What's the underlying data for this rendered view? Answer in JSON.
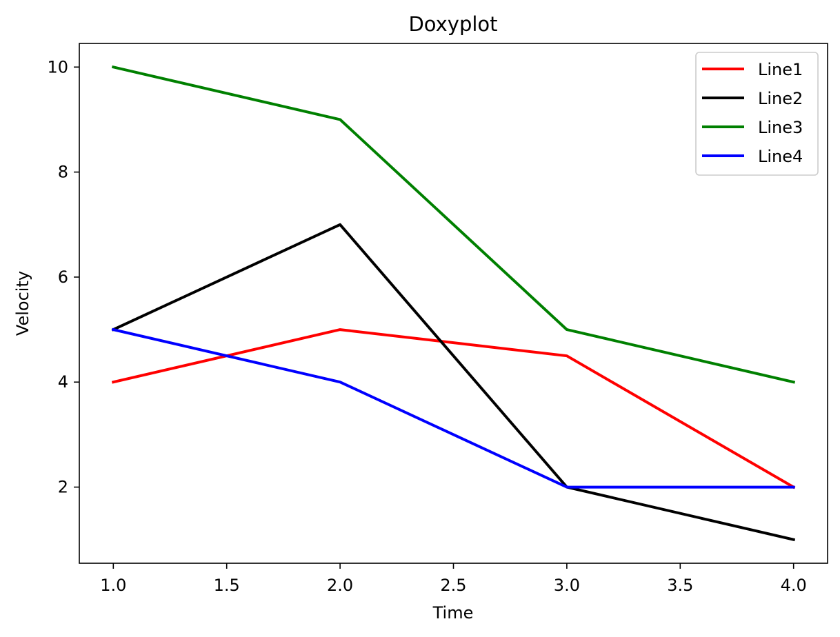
{
  "chart_data": {
    "type": "line",
    "title": "Doxyplot",
    "xlabel": "Time",
    "ylabel": "Velocity",
    "xlim": [
      0.85,
      4.15
    ],
    "ylim": [
      0.55,
      10.45
    ],
    "xticks": [
      1.0,
      1.5,
      2.0,
      2.5,
      3.0,
      3.5,
      4.0
    ],
    "xtick_labels": [
      "1.0",
      "1.5",
      "2.0",
      "2.5",
      "3.0",
      "3.5",
      "4.0"
    ],
    "yticks": [
      2,
      4,
      6,
      8,
      10
    ],
    "ytick_labels": [
      "2",
      "4",
      "6",
      "8",
      "10"
    ],
    "grid": false,
    "legend_position": "top-right",
    "x": [
      1,
      2,
      3,
      4
    ],
    "series": [
      {
        "name": "Line1",
        "color": "#ff0000",
        "values": [
          4,
          5,
          4.5,
          2
        ]
      },
      {
        "name": "Line2",
        "color": "#000000",
        "values": [
          5,
          7,
          2,
          1
        ]
      },
      {
        "name": "Line3",
        "color": "#008000",
        "values": [
          10,
          9,
          5,
          4
        ]
      },
      {
        "name": "Line4",
        "color": "#0000ff",
        "values": [
          5,
          4,
          2,
          2
        ]
      }
    ]
  }
}
